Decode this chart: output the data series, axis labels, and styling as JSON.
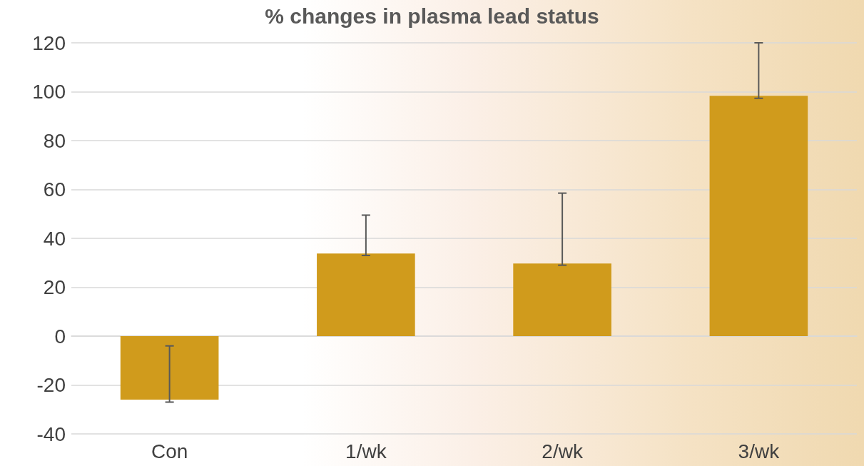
{
  "chart_data": {
    "type": "bar",
    "title": "% changes in plasma lead status",
    "categories": [
      "Con",
      "1/wk",
      "2/wk",
      "3/wk"
    ],
    "values": [
      -26,
      33.8,
      29.7,
      98.3
    ],
    "errors": [
      [
        -27,
        -4
      ],
      [
        33,
        49.5
      ],
      [
        29,
        58.5
      ],
      [
        97.3,
        120
      ]
    ],
    "color": "#d09b1c",
    "ylim": [
      -40,
      120
    ],
    "yticks": [
      -40,
      -20,
      0,
      20,
      40,
      60,
      80,
      100,
      120
    ],
    "grid": "y"
  }
}
